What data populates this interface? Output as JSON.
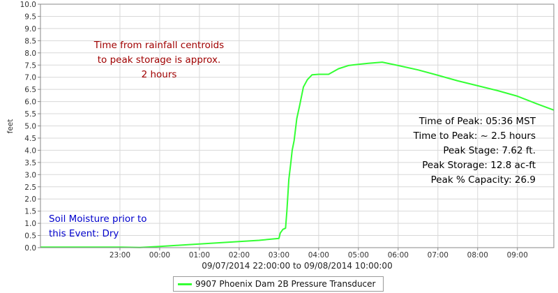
{
  "chart_data": {
    "type": "line",
    "title": "",
    "xlabel": "09/07/2014 22:00:00 to 09/08/2014 10:00:00",
    "ylabel": "feet",
    "ylim": [
      0,
      10
    ],
    "xlim": [
      "21:00",
      "09:55"
    ],
    "yticks": [
      "0.0",
      "0.5",
      "1.0",
      "1.5",
      "2.0",
      "2.5",
      "3.0",
      "3.5",
      "4.0",
      "4.5",
      "5.0",
      "5.5",
      "6.0",
      "6.5",
      "7.0",
      "7.5",
      "8.0",
      "8.5",
      "9.0",
      "9.5",
      "10.0"
    ],
    "xtick_labels": [
      "23:00",
      "00:00",
      "01:00",
      "02:00",
      "03:00",
      "04:00",
      "05:00",
      "06:00",
      "07:00",
      "08:00",
      "09:00"
    ],
    "grid": true,
    "legend_position": "bottom",
    "series": [
      {
        "name": "9907 Phoenix Dam 2B Pressure Transducer",
        "color": "#33ff33",
        "x": [
          "21:00",
          "22:00",
          "23:00",
          "23:30",
          "00:00",
          "00:30",
          "01:00",
          "01:30",
          "02:00",
          "02:30",
          "03:00",
          "03:02",
          "03:06",
          "03:10",
          "03:12",
          "03:15",
          "03:18",
          "03:20",
          "03:23",
          "03:27",
          "03:31",
          "03:37",
          "03:43",
          "03:50",
          "04:00",
          "04:15",
          "04:30",
          "04:45",
          "05:00",
          "05:15",
          "05:36",
          "06:00",
          "06:30",
          "07:00",
          "07:30",
          "08:00",
          "08:30",
          "09:00",
          "09:30",
          "09:55"
        ],
        "y": [
          0.02,
          0.02,
          0.02,
          0.01,
          0.05,
          0.1,
          0.15,
          0.2,
          0.25,
          0.3,
          0.38,
          0.6,
          0.75,
          0.8,
          1.5,
          2.8,
          3.5,
          4.0,
          4.4,
          5.3,
          5.8,
          6.6,
          6.9,
          7.1,
          7.12,
          7.12,
          7.35,
          7.48,
          7.53,
          7.57,
          7.62,
          7.48,
          7.3,
          7.08,
          6.85,
          6.65,
          6.45,
          6.22,
          5.9,
          5.65
        ]
      }
    ],
    "annotations": [
      {
        "color": "#a00000",
        "lines": [
          "Time from rainfall centroids",
          "to peak storage is approx.",
          "2 hours"
        ]
      },
      {
        "color": "#000000",
        "lines": [
          "Time of Peak: 05:36 MST",
          "Time to Peak: ~ 2.5 hours",
          "Peak Stage: 7.62 ft.",
          "Peak Storage: 12.8 ac-ft",
          "Peak % Capacity: 26.9"
        ]
      },
      {
        "color": "#0000cc",
        "lines": [
          "Soil Moisture prior to",
          "this Event: Dry"
        ]
      }
    ]
  },
  "legend": {
    "label": "9907 Phoenix Dam 2B Pressure Transducer",
    "color": "#33ff33"
  }
}
